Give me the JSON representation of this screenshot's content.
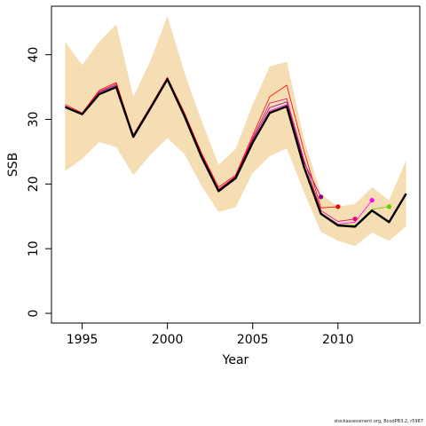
{
  "chart_data": {
    "type": "line",
    "xlabel": "Year",
    "ylabel": "SSB",
    "xlim": [
      1993.2,
      2014.8
    ],
    "ylim": [
      -1.5,
      47.5
    ],
    "xticks": [
      1995,
      2000,
      2005,
      2010
    ],
    "yticks": [
      0,
      10,
      20,
      30,
      40
    ],
    "y_tick_orientation": "rotated-vertical",
    "grid": false,
    "legend": "none",
    "colors": {
      "band": "#f5deb3",
      "main": "#000000",
      "retro": [
        "#ff0000",
        "#e6007a",
        "#8b008b",
        "#ff00ff",
        "#66cc00",
        "#5500aa"
      ]
    },
    "band": {
      "x": [
        1994,
        1995,
        1996,
        1997,
        1998,
        1999,
        2000,
        2001,
        2002,
        2003,
        2004,
        2005,
        2006,
        2007,
        2008,
        2009,
        2010,
        2011,
        2012,
        2013,
        2014
      ],
      "upper": [
        42,
        38.4,
        42,
        44.7,
        33.5,
        39,
        46,
        37.2,
        29.8,
        23,
        25.4,
        32.3,
        38.2,
        38.9,
        27,
        18.5,
        16.5,
        16.9,
        19.5,
        17.5,
        23.7
      ],
      "lower": [
        22,
        23.9,
        26.5,
        25.7,
        21.4,
        24.5,
        27.1,
        24.6,
        19.7,
        15.7,
        16.4,
        21.7,
        24.3,
        25.5,
        18.8,
        12.6,
        11.2,
        10.4,
        12.5,
        11.2,
        13.5
      ]
    },
    "series": [
      {
        "x": [
          1994,
          1995,
          1996,
          1997,
          1998,
          1999,
          2000,
          2001,
          2002,
          2003,
          2004,
          2005,
          2006,
          2007,
          2008,
          2009,
          2010,
          2011,
          2012,
          2013,
          2014
        ],
        "values": [
          31.9,
          30.8,
          33.9,
          35,
          27.3,
          31.7,
          36.2,
          30.5,
          24.2,
          18.9,
          20.9,
          26.4,
          31,
          32,
          22.7,
          15.4,
          13.6,
          13.4,
          15.9,
          14.1,
          18.5
        ]
      },
      {
        "x": [
          1994,
          1995,
          1996,
          1997,
          1998,
          1999,
          2000,
          2001,
          2002,
          2003,
          2004,
          2005,
          2006,
          2007,
          2008,
          2009,
          2010
        ],
        "values": [
          32.3,
          31,
          34.5,
          35.7,
          27.6,
          32,
          36.5,
          31,
          24.8,
          19.5,
          21.4,
          27.5,
          33.5,
          35.3,
          25.2,
          16.3,
          16.5
        ]
      },
      {
        "x": [
          1994,
          1995,
          1996,
          1997,
          1998,
          1999,
          2000,
          2001,
          2002,
          2003,
          2004,
          2005,
          2006,
          2007,
          2008,
          2009,
          2010,
          2011
        ],
        "values": [
          32.1,
          30.9,
          34.3,
          35.5,
          27.5,
          31.9,
          36.4,
          30.8,
          24.6,
          19.2,
          21.2,
          27.1,
          32.5,
          33.2,
          23.8,
          15.9,
          14.2,
          14.6
        ]
      },
      {
        "x": [
          1994,
          1995,
          1996,
          1997,
          1998,
          1999,
          2000,
          2001,
          2002,
          2003,
          2004,
          2005,
          2006,
          2007,
          2008,
          2009
        ],
        "values": [
          32,
          30.9,
          34.2,
          35.3,
          27.4,
          31.8,
          36.3,
          30.7,
          24.5,
          19.1,
          21.1,
          26.9,
          31.8,
          32.7,
          23.4,
          18
        ]
      },
      {
        "x": [
          1994,
          1995,
          1996,
          1997,
          1998,
          1999,
          2000,
          2001,
          2002,
          2003,
          2004,
          2005,
          2006,
          2007,
          2008,
          2009,
          2010,
          2011,
          2012
        ],
        "values": [
          31.9,
          30.8,
          34,
          35.1,
          27.3,
          31.7,
          36.2,
          30.6,
          24.3,
          19,
          21,
          26.6,
          31.3,
          32.3,
          23,
          15.5,
          13.8,
          14.1,
          17.5
        ]
      },
      {
        "x": [
          1994,
          1995,
          1996,
          1997,
          1998,
          1999,
          2000,
          2001,
          2002,
          2003,
          2004,
          2005,
          2006,
          2007,
          2008,
          2009,
          2010,
          2011,
          2012,
          2013
        ],
        "values": [
          31.9,
          30.8,
          33.9,
          35,
          27.3,
          31.7,
          36.2,
          30.5,
          24.2,
          18.9,
          20.9,
          26.5,
          31.1,
          32.1,
          22.8,
          15.5,
          13.7,
          13.6,
          16.1,
          16.5
        ]
      }
    ]
  },
  "credit": "stockassessment.org, BcodPB3.2, r5987"
}
